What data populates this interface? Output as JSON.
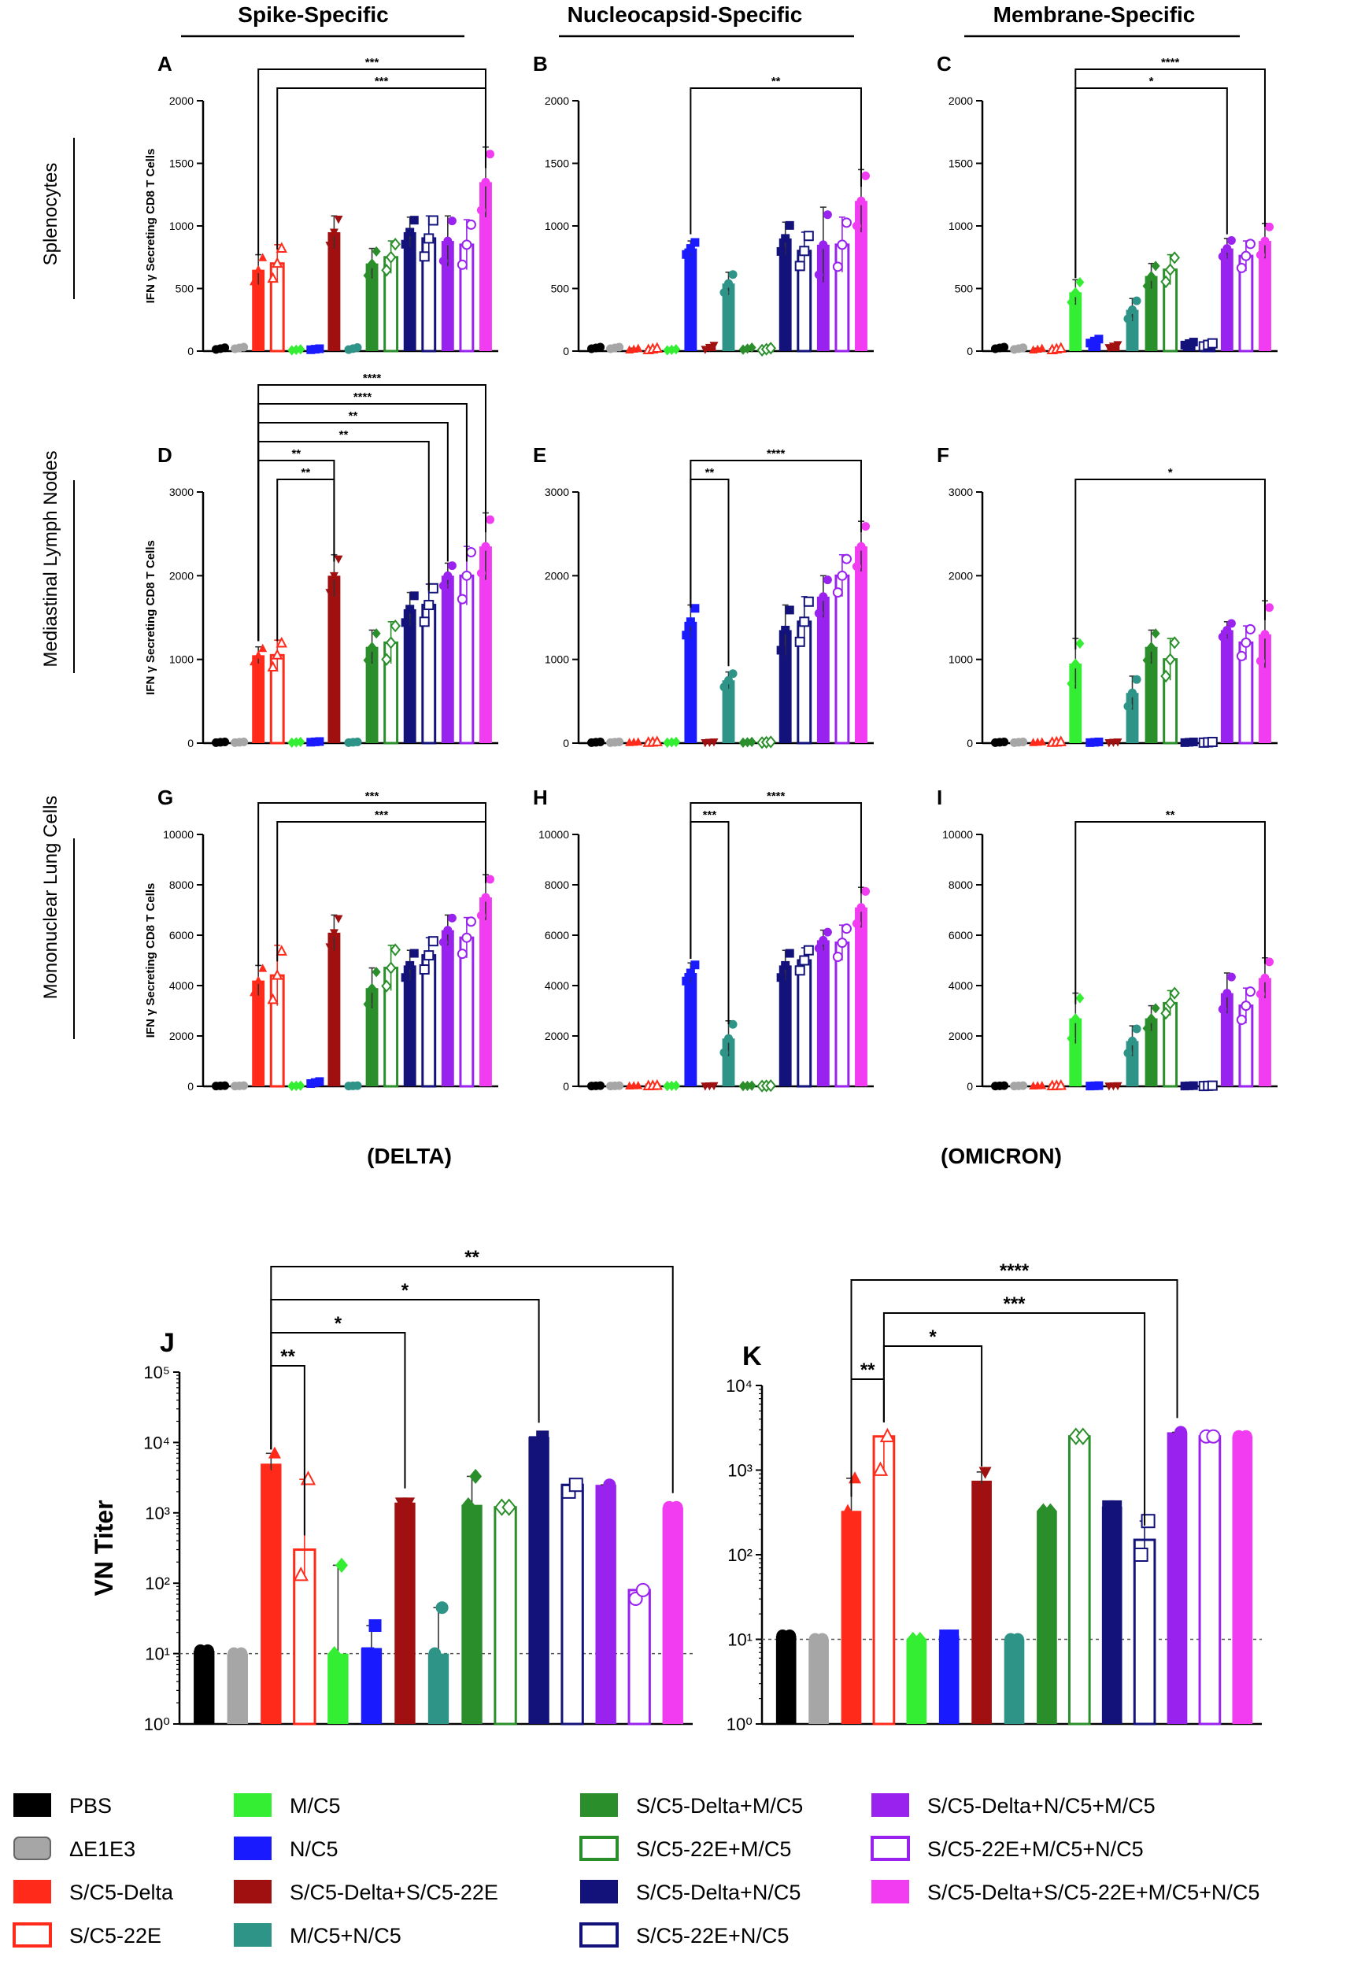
{
  "column_headers": [
    "Spike-Specific",
    "Nucleocapsid-Specific",
    "Membrane-Specific"
  ],
  "row_labels": [
    "Splenocytes",
    "Mediastinal Lymph Nodes",
    "Mononuclear Lung Cells"
  ],
  "y_axis_label": "IFN γ Secreting CD8 T Cells",
  "variant_labels": [
    "(DELTA)",
    "(OMICRON)"
  ],
  "vn_axis_label": "VN Titer",
  "colors": {
    "PBS": "#000000",
    "DE1E3": "#a6a6a6",
    "SDelta": "#ff2a1a",
    "S22E": "#ff2a1a",
    "M": "#33ee33",
    "N": "#1a1aff",
    "SDS22": "#a01010",
    "MN": "#2e9488",
    "SDM": "#2a8f2a",
    "S22M": "#2a8f2a",
    "SDN": "#12127a",
    "S22N": "#12127a",
    "SDNM": "#9a22ee",
    "S22MN": "#9a22ee",
    "ALL": "#f23cf2"
  },
  "legend": [
    {
      "label": "PBS",
      "color_key": "PBS",
      "filled": true
    },
    {
      "label": "ΔE1E3",
      "color_key": "DE1E3",
      "filled": true
    },
    {
      "label": "S/C5-Delta",
      "color_key": "SDelta",
      "filled": true
    },
    {
      "label": "S/C5-22E",
      "color_key": "S22E",
      "filled": false
    },
    {
      "label": "M/C5",
      "color_key": "M",
      "filled": true
    },
    {
      "label": "N/C5",
      "color_key": "N",
      "filled": true
    },
    {
      "label": "S/C5-Delta+S/C5-22E",
      "color_key": "SDS22",
      "filled": true
    },
    {
      "label": "M/C5+N/C5",
      "color_key": "MN",
      "filled": true
    },
    {
      "label": "S/C5-Delta+M/C5",
      "color_key": "SDM",
      "filled": true
    },
    {
      "label": "S/C5-22E+M/C5",
      "color_key": "S22M",
      "filled": false
    },
    {
      "label": "S/C5-Delta+N/C5",
      "color_key": "SDN",
      "filled": true
    },
    {
      "label": "S/C5-22E+N/C5",
      "color_key": "S22N",
      "filled": false
    },
    {
      "label": "S/C5-Delta+N/C5+M/C5",
      "color_key": "SDNM",
      "filled": true
    },
    {
      "label": "S/C5-22E+M/C5+N/C5",
      "color_key": "S22MN",
      "filled": false
    },
    {
      "label": "S/C5-Delta+S/C5-22E+M/C5+N/C5",
      "color_key": "ALL",
      "filled": true
    }
  ],
  "chart_data": [
    {
      "panel": "A",
      "type": "bar",
      "title": "Spike-Specific",
      "region": "Splenocytes",
      "ylabel": "IFN γ Secreting CD8 T Cells",
      "ylim": [
        0,
        2000
      ],
      "yticks": [
        0,
        500,
        1000,
        1500,
        2000
      ],
      "ytick_labels": [
        "0",
        "500",
        "1000",
        "1500",
        "2000"
      ],
      "values": [
        20,
        25,
        650,
        700,
        10,
        15,
        950,
        20,
        700,
        750,
        950,
        900,
        880,
        850,
        1350
      ],
      "errors": [
        8,
        8,
        120,
        150,
        5,
        5,
        130,
        10,
        120,
        130,
        120,
        180,
        200,
        200,
        280
      ],
      "sig": [
        {
          "from": 2,
          "to": 14,
          "label": "***"
        },
        {
          "from": 3,
          "to": 14,
          "label": "***"
        }
      ]
    },
    {
      "panel": "B",
      "type": "bar",
      "title": "Nucleocapsid-Specific",
      "region": "Splenocytes",
      "ylim": [
        0,
        2000
      ],
      "yticks": [
        0,
        500,
        1000,
        1500,
        2000
      ],
      "ytick_labels": [
        "0",
        "500",
        "1000",
        "1500",
        "2000"
      ],
      "values": [
        25,
        25,
        15,
        15,
        10,
        820,
        30,
        540,
        20,
        15,
        900,
        800,
        850,
        850,
        1200
      ],
      "errors": [
        8,
        8,
        8,
        8,
        5,
        60,
        20,
        90,
        10,
        10,
        130,
        150,
        300,
        220,
        250
      ],
      "sig": [
        {
          "from": 5,
          "to": 14,
          "label": "**"
        }
      ]
    },
    {
      "panel": "C",
      "type": "bar",
      "title": "Membrane-Specific",
      "region": "Splenocytes",
      "ylim": [
        0,
        2000
      ],
      "yticks": [
        0,
        500,
        1000,
        1500,
        2000
      ],
      "ytick_labels": [
        "0",
        "500",
        "1000",
        "1500",
        "2000"
      ],
      "values": [
        25,
        20,
        15,
        15,
        470,
        80,
        40,
        330,
        600,
        650,
        60,
        50,
        820,
        760,
        880
      ],
      "errors": [
        8,
        8,
        8,
        8,
        100,
        20,
        15,
        90,
        100,
        120,
        15,
        15,
        80,
        120,
        140
      ],
      "sig": [
        {
          "from": 4,
          "to": 14,
          "label": "****"
        },
        {
          "from": 4,
          "to": 12,
          "label": "*"
        }
      ]
    },
    {
      "panel": "D",
      "type": "bar",
      "region": "Mediastinal Lymph Nodes",
      "ylabel": "IFN γ Secreting CD8 T Cells",
      "ylim": [
        0,
        3000
      ],
      "yticks": [
        0,
        1000,
        2000,
        3000
      ],
      "ytick_labels": [
        "0",
        "1000",
        "2000",
        "3000"
      ],
      "values": [
        10,
        10,
        1050,
        1050,
        10,
        15,
        2000,
        10,
        1150,
        1200,
        1600,
        1650,
        2000,
        2000,
        2350
      ],
      "errors": [
        5,
        5,
        100,
        180,
        5,
        5,
        250,
        5,
        200,
        250,
        200,
        250,
        150,
        350,
        400
      ],
      "sig": [
        {
          "from": 2,
          "to": 14,
          "label": "****"
        },
        {
          "from": 2,
          "to": 13,
          "label": "****"
        },
        {
          "from": 2,
          "to": 12,
          "label": "**"
        },
        {
          "from": 2,
          "to": 11,
          "label": "**"
        },
        {
          "from": 2,
          "to": 6,
          "label": "**"
        },
        {
          "from": 3,
          "to": 6,
          "label": "**"
        }
      ]
    },
    {
      "panel": "E",
      "type": "bar",
      "region": "Mediastinal Lymph Nodes",
      "ylim": [
        0,
        3000
      ],
      "yticks": [
        0,
        1000,
        2000,
        3000
      ],
      "ytick_labels": [
        "0",
        "1000",
        "2000",
        "3000"
      ],
      "values": [
        10,
        10,
        10,
        10,
        10,
        1450,
        10,
        750,
        10,
        10,
        1350,
        1450,
        1750,
        2000,
        2350
      ],
      "errors": [
        5,
        5,
        5,
        5,
        5,
        200,
        5,
        100,
        5,
        5,
        300,
        300,
        250,
        250,
        300
      ],
      "sig": [
        {
          "from": 5,
          "to": 14,
          "label": "****"
        },
        {
          "from": 5,
          "to": 7,
          "label": "**"
        }
      ]
    },
    {
      "panel": "F",
      "type": "bar",
      "region": "Mediastinal Lymph Nodes",
      "ylim": [
        0,
        3000
      ],
      "yticks": [
        0,
        1000,
        2000,
        3000
      ],
      "ytick_labels": [
        "0",
        "1000",
        "2000",
        "3000"
      ],
      "values": [
        10,
        10,
        10,
        10,
        950,
        10,
        10,
        600,
        1150,
        1000,
        10,
        10,
        1350,
        1200,
        1300
      ],
      "errors": [
        5,
        5,
        5,
        5,
        300,
        5,
        5,
        200,
        200,
        250,
        5,
        5,
        100,
        200,
        400
      ],
      "sig": [
        {
          "from": 4,
          "to": 14,
          "label": "*"
        }
      ]
    },
    {
      "panel": "G",
      "type": "bar",
      "region": "Mononuclear Lung Cells",
      "ylabel": "IFN γ Secreting CD8 T Cells",
      "ylim": [
        0,
        10000
      ],
      "yticks": [
        0,
        2000,
        4000,
        6000,
        8000,
        10000
      ],
      "ytick_labels": [
        "0",
        "2000",
        "4000",
        "6000",
        "8000",
        "10000"
      ],
      "values": [
        20,
        20,
        4200,
        4400,
        20,
        150,
        6100,
        20,
        3900,
        4700,
        4800,
        5200,
        6200,
        5900,
        7500
      ],
      "errors": [
        10,
        10,
        600,
        1200,
        10,
        50,
        700,
        10,
        800,
        900,
        600,
        700,
        600,
        800,
        900
      ],
      "sig": [
        {
          "from": 2,
          "to": 14,
          "label": "***"
        },
        {
          "from": 3,
          "to": 14,
          "label": "***"
        }
      ]
    },
    {
      "panel": "H",
      "type": "bar",
      "region": "Mononuclear Lung Cells",
      "ylim": [
        0,
        10000
      ],
      "yticks": [
        0,
        2000,
        4000,
        6000,
        8000,
        10000
      ],
      "ytick_labels": [
        "0",
        "2000",
        "4000",
        "6000",
        "8000",
        "10000"
      ],
      "values": [
        20,
        20,
        20,
        20,
        20,
        4500,
        20,
        1900,
        20,
        20,
        4800,
        5000,
        5800,
        5700,
        7100
      ],
      "errors": [
        10,
        10,
        10,
        10,
        10,
        400,
        10,
        700,
        10,
        10,
        600,
        500,
        400,
        700,
        800
      ],
      "sig": [
        {
          "from": 5,
          "to": 14,
          "label": "****"
        },
        {
          "from": 5,
          "to": 7,
          "label": "***"
        }
      ]
    },
    {
      "panel": "I",
      "type": "bar",
      "region": "Mononuclear Lung Cells",
      "ylim": [
        0,
        10000
      ],
      "yticks": [
        0,
        2000,
        4000,
        6000,
        8000,
        10000
      ],
      "ytick_labels": [
        "0",
        "2000",
        "4000",
        "6000",
        "8000",
        "10000"
      ],
      "values": [
        20,
        20,
        20,
        20,
        2700,
        20,
        20,
        1800,
        2700,
        3300,
        20,
        20,
        3700,
        3200,
        4300
      ],
      "errors": [
        10,
        10,
        10,
        10,
        1000,
        10,
        10,
        600,
        500,
        500,
        10,
        10,
        800,
        700,
        800
      ],
      "sig": [
        {
          "from": 4,
          "to": 14,
          "label": "**"
        }
      ]
    },
    {
      "panel": "J",
      "type": "bar",
      "scale": "log",
      "variant": "(DELTA)",
      "ylabel": "VN Titer",
      "ylim": [
        1,
        100000
      ],
      "yticks": [
        1,
        10,
        100,
        1000,
        10000,
        100000
      ],
      "ytick_labels": [
        "10⁰",
        "10¹",
        "10²",
        "10³",
        "10⁴",
        "10⁵"
      ],
      "dashed_line": 10,
      "values": [
        11,
        10,
        5000,
        300,
        10,
        12,
        1400,
        10,
        1300,
        1200,
        12000,
        2500,
        2500,
        80,
        1200
      ],
      "err_upper": [
        11,
        10,
        7000,
        3000,
        180,
        25,
        1400,
        45,
        3300,
        1200,
        12000,
        2500,
        2500,
        80,
        1200
      ],
      "err_lower": [
        11,
        10,
        4000,
        130,
        10,
        10,
        1400,
        10,
        1300,
        1200,
        10000,
        2000,
        2000,
        60,
        1200
      ],
      "sig": [
        {
          "from": 2,
          "to": 14,
          "label": "**"
        },
        {
          "from": 2,
          "to": 10,
          "label": "*"
        },
        {
          "from": 2,
          "to": 6,
          "label": "*"
        },
        {
          "from": 2,
          "to": 3,
          "label": "**"
        }
      ]
    },
    {
      "panel": "K",
      "type": "bar",
      "scale": "log",
      "variant": "(OMICRON)",
      "ylim": [
        1,
        10000
      ],
      "yticks": [
        1,
        10,
        100,
        1000,
        10000
      ],
      "ytick_labels": [
        "10⁰",
        "10¹",
        "10²",
        "10³",
        "10⁴"
      ],
      "dashed_line": 10,
      "values": [
        11,
        10,
        330,
        2500,
        10,
        11,
        750,
        10,
        330,
        2500,
        370,
        150,
        2800,
        2500,
        2500
      ],
      "err_upper": [
        11,
        10,
        800,
        2500,
        10,
        11,
        950,
        10,
        330,
        2500,
        370,
        250,
        2800,
        2500,
        2500
      ],
      "err_lower": [
        11,
        10,
        330,
        1000,
        10,
        11,
        600,
        10,
        330,
        2500,
        370,
        100,
        2200,
        2500,
        2500
      ],
      "sig": [
        {
          "from": 2,
          "to": 12,
          "label": "****"
        },
        {
          "from": 3,
          "to": 11,
          "label": "***"
        },
        {
          "from": 3,
          "to": 6,
          "label": "*"
        },
        {
          "from": 2,
          "to": 3,
          "label": "**"
        }
      ]
    }
  ]
}
